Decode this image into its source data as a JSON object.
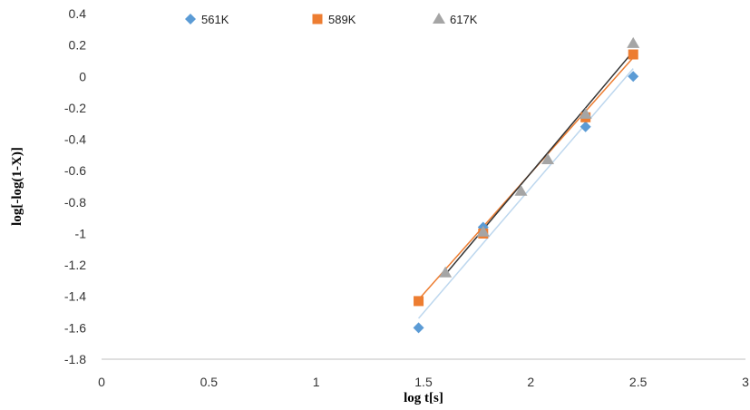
{
  "chart_data": {
    "type": "scatter",
    "title": "",
    "xlabel": "log t[s]",
    "ylabel": "log[-log(1-X)]",
    "xlim": [
      0,
      3
    ],
    "ylim": [
      -1.8,
      0.4
    ],
    "x_ticks": [
      "0",
      "0.5",
      "1",
      "1.5",
      "2",
      "2.5",
      "3"
    ],
    "y_ticks": [
      "0.4",
      "0.2",
      "0",
      "-0.2",
      "-0.4",
      "-0.6",
      "-0.8",
      "-1",
      "-1.2",
      "-1.4",
      "-1.6",
      "-1.8"
    ],
    "grid": false,
    "legend_position": "top",
    "series": [
      {
        "name": "561K",
        "marker": "diamond",
        "color": "#5B9BD5",
        "trendline_color": "#BDD7EE",
        "x": [
          1.477,
          1.778,
          2.255,
          2.477
        ],
        "y": [
          -1.6,
          -0.96,
          -0.32,
          0.0
        ],
        "trendline": [
          [
            1.477,
            -1.54
          ],
          [
            2.477,
            0.05
          ]
        ]
      },
      {
        "name": "589K",
        "marker": "square",
        "color": "#ED7D31",
        "trendline_color": "#ED7D31",
        "x": [
          1.477,
          1.778,
          2.255,
          2.477
        ],
        "y": [
          -1.43,
          -1.0,
          -0.26,
          0.14
        ],
        "trendline": [
          [
            1.477,
            -1.42
          ],
          [
            2.477,
            0.12
          ]
        ]
      },
      {
        "name": "617K",
        "marker": "triangle",
        "color": "#A5A5A5",
        "trendline_color": "#333333",
        "x": [
          1.602,
          1.778,
          1.954,
          2.079,
          2.255,
          2.477
        ],
        "y": [
          -1.25,
          -0.99,
          -0.73,
          -0.53,
          -0.24,
          0.21
        ],
        "trendline": [
          [
            1.602,
            -1.26
          ],
          [
            2.477,
            0.16
          ]
        ]
      }
    ]
  }
}
